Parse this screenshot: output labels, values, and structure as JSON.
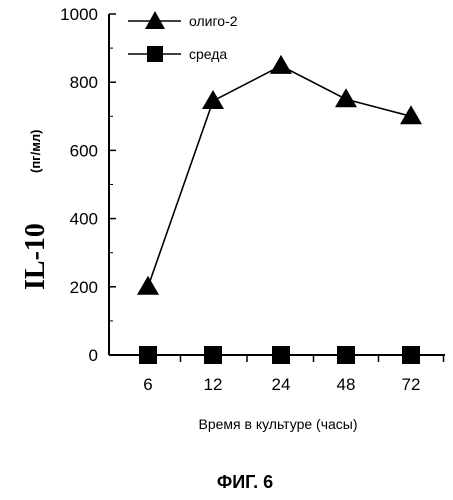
{
  "chart_data": {
    "type": "line",
    "categories": [
      "6",
      "12",
      "24",
      "48",
      "72"
    ],
    "series": [
      {
        "name": "олиго-2",
        "marker": "triangle",
        "values": [
          200,
          745,
          848,
          750,
          700
        ]
      },
      {
        "name": "среда",
        "marker": "square",
        "values": [
          0,
          0,
          0,
          0,
          0
        ]
      }
    ],
    "ylim": [
      0,
      1000
    ],
    "yticks": [
      "0",
      "200",
      "400",
      "600",
      "800",
      "1000"
    ],
    "ylabel": "IL-10",
    "ylabel_unit": "(пг/мл)",
    "xlabel": "Время в культуре (часы)",
    "grid": false,
    "legend_position": "top-left",
    "colors": {
      "line": "#000000",
      "marker": "#000000",
      "background": "#ffffff"
    }
  },
  "caption": "ФИГ. 6"
}
